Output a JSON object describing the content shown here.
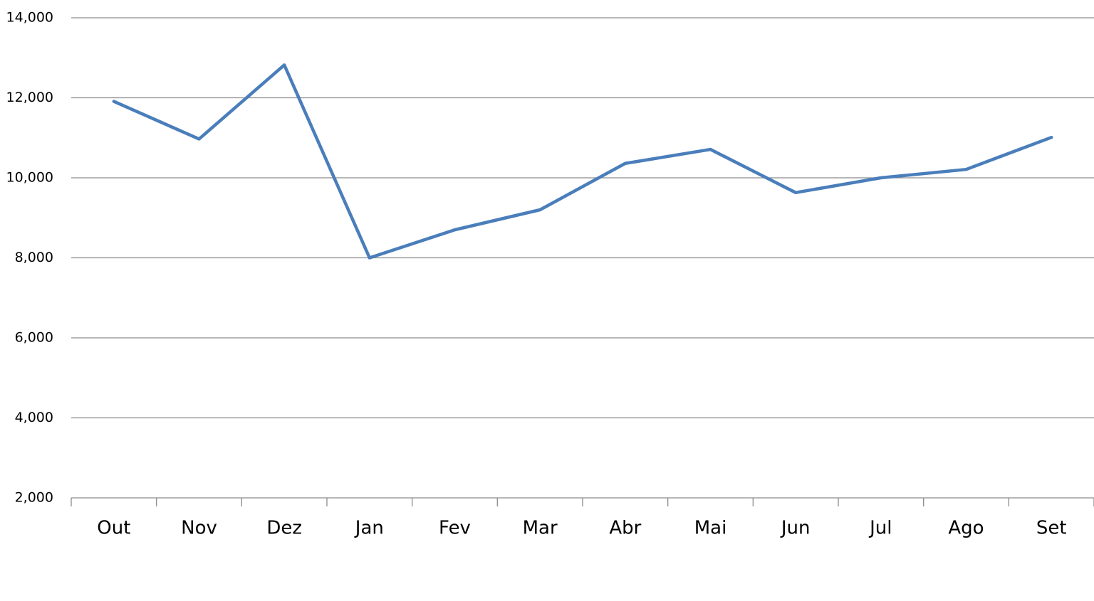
{
  "chart_data": {
    "type": "line",
    "categories": [
      "Out",
      "Nov",
      "Dez",
      "Jan",
      "Fev",
      "Mar",
      "Abr",
      "Mai",
      "Jun",
      "Jul",
      "Ago",
      "Set"
    ],
    "series": [
      {
        "color": "#4a7ebb",
        "values": [
          11910,
          10970,
          12820,
          8000,
          8700,
          9200,
          10360,
          10710,
          9630,
          10000,
          10210,
          11010
        ]
      }
    ],
    "ylim": [
      2000,
      14000
    ],
    "yticks": [
      {
        "value": 2000,
        "label": "2,000"
      },
      {
        "value": 4000,
        "label": "4,000"
      },
      {
        "value": 6000,
        "label": "6,000"
      },
      {
        "value": 8000,
        "label": "8,000"
      },
      {
        "value": 10000,
        "label": "10,000"
      },
      {
        "value": 12000,
        "label": "12,000"
      },
      {
        "value": 14000,
        "label": "14,000"
      }
    ],
    "grid": true
  }
}
